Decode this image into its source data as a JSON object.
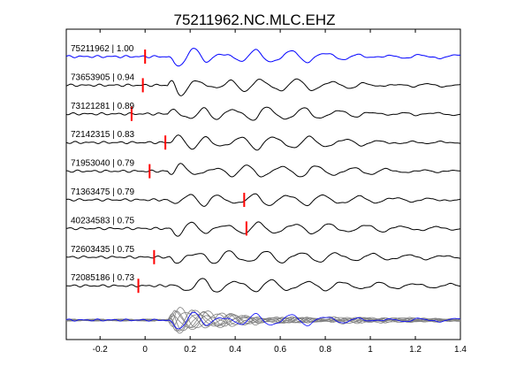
{
  "chart_data": {
    "type": "line",
    "title": "75211962.NC.MLC.EHZ",
    "xlabel": "",
    "ylabel": "",
    "xlim": [
      -0.35,
      1.4
    ],
    "x_ticks": [
      {
        "value": -0.2,
        "label": "-0.2"
      },
      {
        "value": 0,
        "label": "0"
      },
      {
        "value": 0.2,
        "label": "0.2"
      },
      {
        "value": 0.4,
        "label": "0.4"
      },
      {
        "value": 0.6,
        "label": "0.6"
      },
      {
        "value": 0.8,
        "label": "0.8"
      },
      {
        "value": 1,
        "label": "1"
      },
      {
        "value": 1.2,
        "label": "1.2"
      },
      {
        "value": 1.4,
        "label": "1.4"
      }
    ],
    "grid": false,
    "colors": {
      "reference": "#0000ff",
      "trace": "#000000",
      "pick": "#ff0000",
      "stack": "#808080"
    },
    "traces": [
      {
        "label": "75211962 | 1.00",
        "pick_time": 0.0,
        "reference": true,
        "seed": 1
      },
      {
        "label": "73653905 | 0.94",
        "pick_time": -0.01,
        "reference": false,
        "seed": 2
      },
      {
        "label": "73121281 | 0.89",
        "pick_time": -0.06,
        "reference": false,
        "seed": 3
      },
      {
        "label": "72142315 | 0.83",
        "pick_time": 0.09,
        "reference": false,
        "seed": 4
      },
      {
        "label": "71953040 | 0.79",
        "pick_time": 0.02,
        "reference": false,
        "seed": 5
      },
      {
        "label": "71363475 | 0.79",
        "pick_time": 0.44,
        "reference": false,
        "seed": 6
      },
      {
        "label": "40234583 | 0.75",
        "pick_time": 0.45,
        "reference": false,
        "seed": 7
      },
      {
        "label": "72603435 | 0.75",
        "pick_time": 0.04,
        "reference": false,
        "seed": 8
      },
      {
        "label": "72085186 | 0.73",
        "pick_time": -0.03,
        "reference": false,
        "seed": 9
      }
    ],
    "stack": {
      "label": "",
      "overlay_count": 9
    }
  }
}
